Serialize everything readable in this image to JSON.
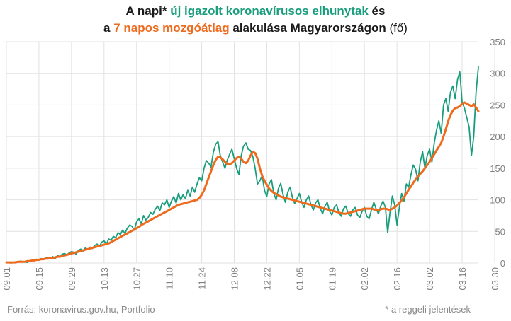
{
  "title": {
    "line1_a": "A napi* ",
    "line1_b": "új igazolt koronavírusos elhunytak",
    "line1_c": " és",
    "line2_a": "a ",
    "line2_b": "7 napos mozgóátlag",
    "line2_c": " alakulása Magyarországon",
    "line2_d": " (fő)"
  },
  "footer": {
    "source": "Forrás: koronavirus.gov.hu, Portfolio",
    "note": "* a reggeli jelentések"
  },
  "colors": {
    "daily": "#199e7d",
    "average": "#ee6a1c",
    "grid": "#e2e2e2",
    "axis_text": "#7f7f7f"
  },
  "chart_data": {
    "type": "line",
    "x_tick_labels": [
      "09.01",
      "09.15",
      "09.29",
      "10.13",
      "10.27",
      "11.10",
      "11.24",
      "12.08",
      "12.22",
      "01.05",
      "01.19",
      "02.02",
      "02.16",
      "03.02",
      "03.16",
      "03.30"
    ],
    "y_ticks": [
      0,
      50,
      100,
      150,
      200,
      250,
      300,
      350
    ],
    "ylim": [
      0,
      350
    ],
    "y_axis_position": "right",
    "grid": true,
    "series": [
      {
        "key": "daily",
        "values": [
          1,
          1,
          0,
          1,
          2,
          1,
          3,
          2,
          2,
          1,
          3,
          4,
          5,
          6,
          5,
          7,
          6,
          8,
          9,
          8,
          10,
          7,
          12,
          10,
          14,
          15,
          13,
          16,
          18,
          17,
          14,
          20,
          22,
          19,
          24,
          21,
          25,
          23,
          28,
          30,
          26,
          33,
          35,
          30,
          38,
          36,
          42,
          40,
          48,
          45,
          52,
          47,
          55,
          60,
          58,
          52,
          65,
          70,
          62,
          75,
          68,
          72,
          80,
          77,
          85,
          90,
          83,
          95,
          92,
          100,
          88,
          98,
          105,
          95,
          110,
          100,
          108,
          102,
          115,
          106,
          120,
          112,
          125,
          135,
          130,
          150,
          162,
          158,
          152,
          175,
          188,
          192,
          170,
          160,
          150,
          163,
          172,
          180,
          165,
          150,
          140,
          170,
          185,
          190,
          180,
          178,
          168,
          150,
          125,
          130,
          138,
          115,
          105,
          125,
          132,
          110,
          100,
          118,
          126,
          108,
          96,
          112,
          120,
          104,
          94,
          102,
          110,
          96,
          88,
          100,
          106,
          92,
          84,
          95,
          100,
          86,
          78,
          90,
          96,
          82,
          76,
          88,
          92,
          80,
          74,
          86,
          90,
          78,
          74,
          84,
          88,
          76,
          72,
          82,
          88,
          74,
          70,
          84,
          96,
          86,
          78,
          90,
          98,
          88,
          48,
          80,
          106,
          92,
          60,
          88,
          110,
          98,
          125,
          120,
          140,
          155,
          148,
          130,
          160,
          176,
          150,
          170,
          180,
          160,
          190,
          210,
          225,
          205,
          250,
          260,
          240,
          270,
          280,
          260,
          290,
          302,
          255,
          245,
          230,
          215,
          170,
          200,
          270,
          310
        ]
      },
      {
        "key": "average",
        "values": [
          1,
          1,
          1,
          1,
          1,
          2,
          2,
          2,
          2,
          3,
          3,
          4,
          4,
          5,
          5,
          6,
          6,
          7,
          7,
          8,
          8,
          9,
          10,
          10,
          11,
          12,
          13,
          14,
          15,
          16,
          17,
          18,
          19,
          20,
          21,
          22,
          23,
          24,
          25,
          26,
          27,
          28,
          29,
          30,
          31,
          33,
          35,
          37,
          39,
          41,
          43,
          45,
          47,
          49,
          51,
          53,
          55,
          57,
          60,
          62,
          64,
          66,
          68,
          70,
          72,
          74,
          76,
          78,
          80,
          82,
          84,
          86,
          88,
          90,
          92,
          93,
          94,
          95,
          96,
          97,
          98,
          99,
          100,
          103,
          108,
          115,
          125,
          135,
          145,
          155,
          163,
          168,
          167,
          164,
          160,
          157,
          156,
          158,
          162,
          166,
          168,
          165,
          160,
          158,
          162,
          170,
          176,
          174,
          165,
          150,
          138,
          130,
          124,
          118,
          114,
          111,
          109,
          107,
          105,
          104,
          103,
          102,
          101,
          100,
          99,
          98,
          97,
          96,
          95,
          94,
          93,
          92,
          91,
          90,
          89,
          88,
          87,
          86,
          85,
          84,
          83,
          82,
          81,
          80,
          79,
          78,
          78,
          79,
          80,
          81,
          82,
          83,
          84,
          85,
          86,
          86,
          86,
          86,
          85,
          84,
          84,
          85,
          86,
          86,
          85,
          84,
          86,
          88,
          91,
          95,
          99,
          104,
          110,
          116,
          121,
          127,
          132,
          137,
          141,
          145,
          150,
          155,
          160,
          166,
          172,
          178,
          184,
          190,
          200,
          212,
          224,
          234,
          241,
          245,
          246,
          248,
          252,
          254,
          252,
          250,
          248,
          251,
          246,
          240
        ]
      }
    ]
  }
}
